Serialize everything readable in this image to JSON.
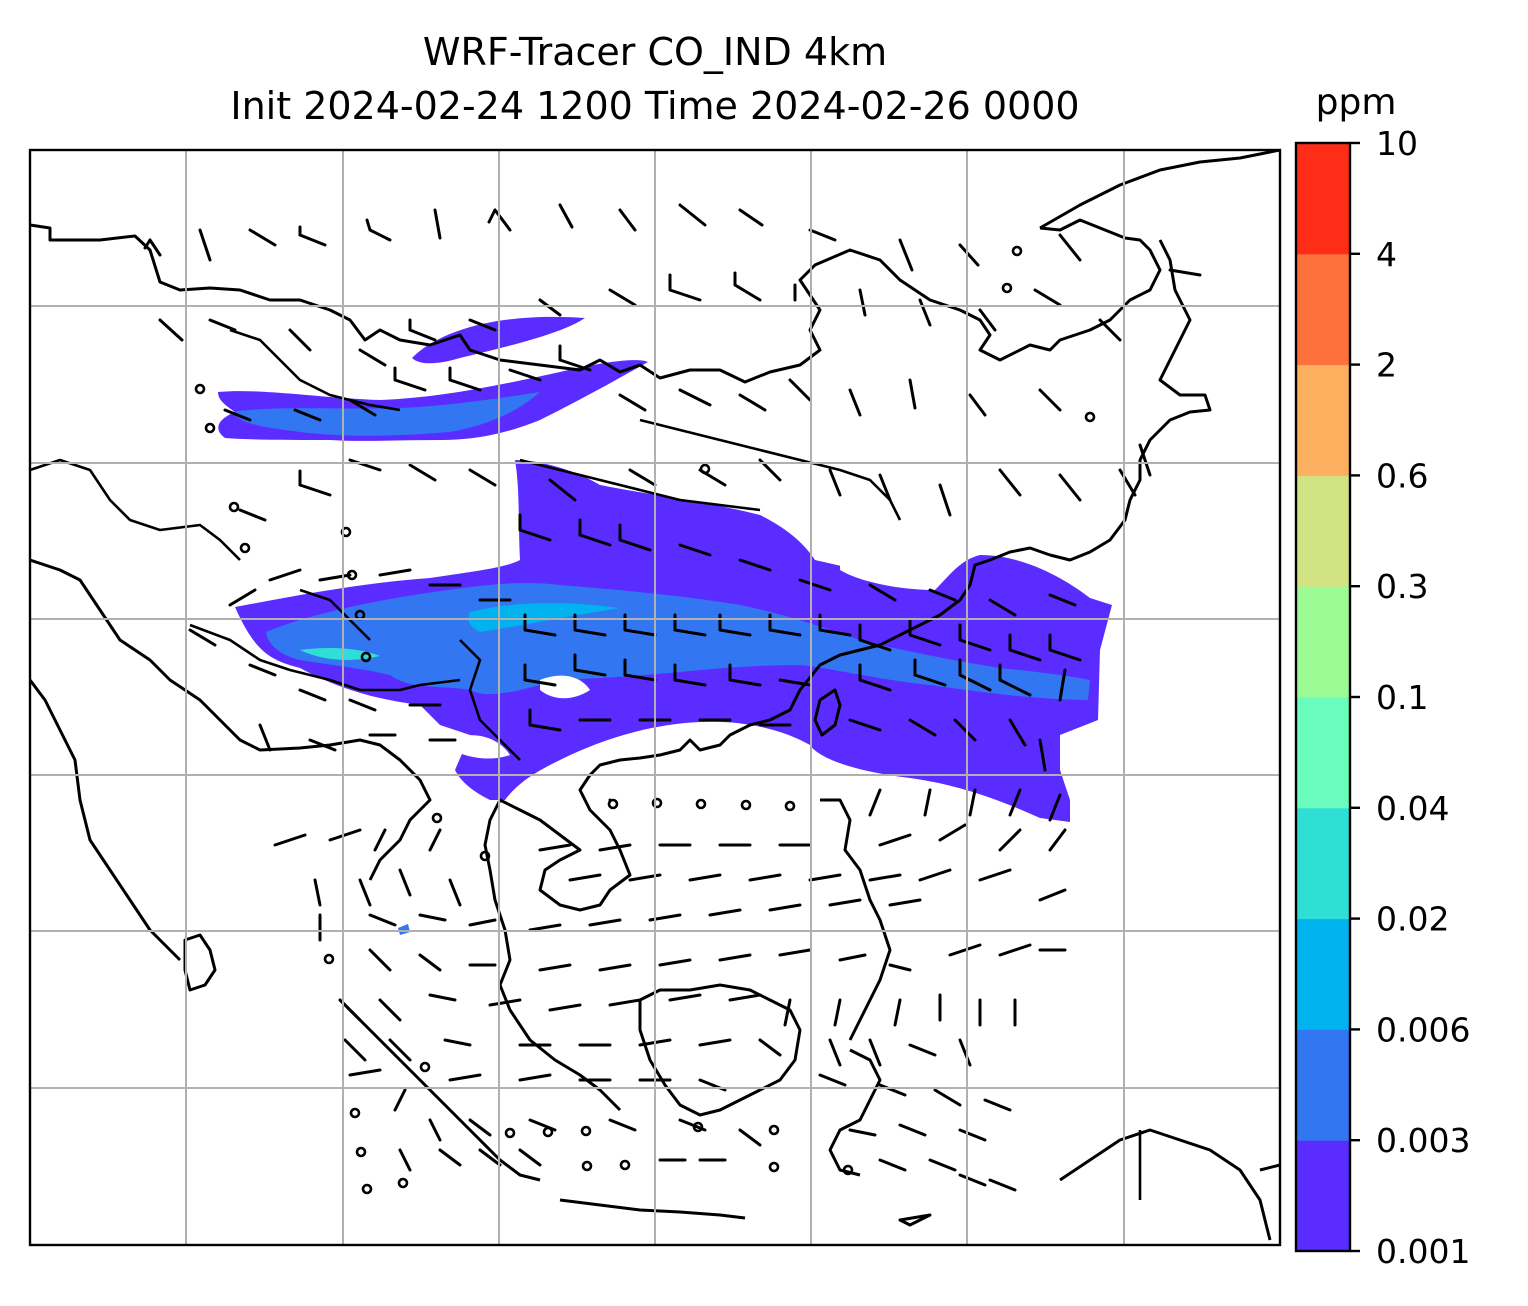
{
  "title_line1": "WRF-Tracer CO_IND 4km",
  "title_line2": "Init 2024-02-24 1200 Time 2024-02-26 0000",
  "colorbar": {
    "unit": "ppm",
    "levels": [
      "0.001",
      "0.003",
      "0.006",
      "0.02",
      "0.04",
      "0.1",
      "0.3",
      "0.6",
      "2",
      "4",
      "10"
    ],
    "colors": [
      "#5b2cff",
      "#3276f2",
      "#00b3ee",
      "#2fdfd5",
      "#6afcbd",
      "#9bfa94",
      "#d1e283",
      "#fcb05f",
      "#ff713c",
      "#ff2d18"
    ]
  },
  "map": {
    "projection": "lat-lon",
    "gridlines": true,
    "features": [
      "coastlines",
      "country borders",
      "wind barbs",
      "CO tracer concentration plume"
    ],
    "plume_colors": [
      "#5b2cff",
      "#3276f2",
      "#00b3ee",
      "#2fdfd5"
    ]
  }
}
